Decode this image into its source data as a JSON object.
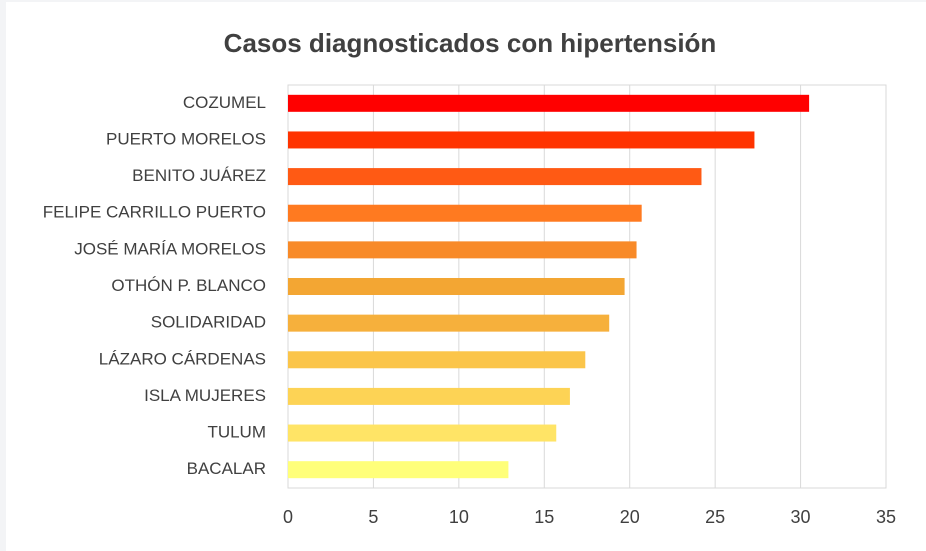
{
  "chart_data": {
    "type": "bar",
    "orientation": "horizontal",
    "title": "Casos diagnosticados con hipertensión",
    "categories": [
      "COZUMEL",
      "PUERTO MORELOS",
      "BENITO JUÁREZ",
      "FELIPE CARRILLO PUERTO",
      "JOSÉ MARÍA MORELOS",
      "OTHÓN P. BLANCO",
      "SOLIDARIDAD",
      "LÁZARO CÁRDENAS",
      "ISLA MUJERES",
      "TULUM",
      "BACALAR"
    ],
    "values": [
      30.5,
      27.3,
      24.2,
      20.7,
      20.4,
      19.7,
      18.8,
      17.4,
      16.5,
      15.7,
      12.9
    ],
    "colors": [
      "#ff0000",
      "#ff3300",
      "#ff5a14",
      "#ff7a20",
      "#f88a28",
      "#f3a633",
      "#f6b03c",
      "#fbc54a",
      "#fdd355",
      "#ffe466",
      "#ffff7a"
    ],
    "xlim": [
      0,
      35
    ],
    "xticks": [
      0,
      5,
      10,
      15,
      20,
      25,
      30,
      35
    ],
    "grid": true
  }
}
